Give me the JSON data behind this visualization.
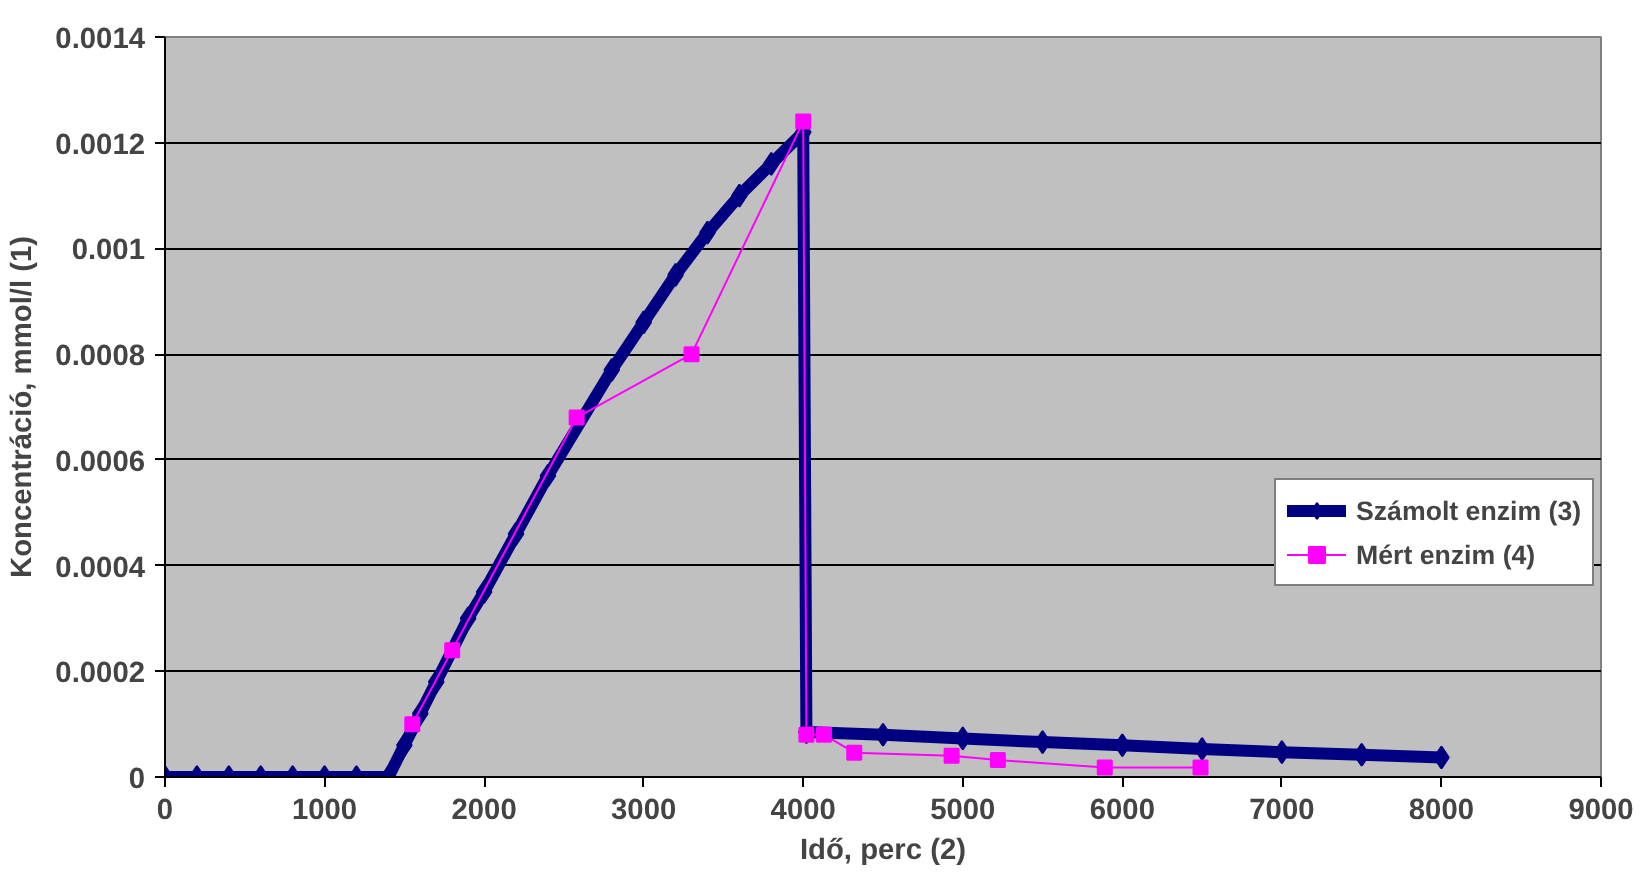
{
  "chart_data": {
    "type": "line",
    "xlabel": "Idő, perc (2)",
    "ylabel": "Koncentráció, mmol/l (1)",
    "xlim": [
      0,
      9000
    ],
    "xticks": [
      0,
      1000,
      2000,
      3000,
      4000,
      5000,
      6000,
      7000,
      8000,
      9000
    ],
    "ylim": [
      0,
      0.0014
    ],
    "yticks": [
      0,
      0.0002,
      0.0004,
      0.0006,
      0.0008,
      0.001,
      0.0012,
      0.0014
    ],
    "grid": "y",
    "legend": "right",
    "series": [
      {
        "name": "Számolt enzim (3)",
        "color": "#000080",
        "marker": "diamond",
        "x": [
          0,
          200,
          400,
          600,
          800,
          1000,
          1200,
          1400,
          1500,
          1600,
          1700,
          1900,
          2000,
          2200,
          2400,
          2800,
          3000,
          3200,
          3400,
          3600,
          3800,
          4000,
          4020,
          4500,
          5000,
          5500,
          6000,
          6500,
          7000,
          7500,
          8000
        ],
        "values": [
          0,
          0,
          0,
          0,
          0,
          0,
          0,
          0,
          6e-05,
          0.00012,
          0.00018,
          0.0003,
          0.00035,
          0.00046,
          0.00057,
          0.00077,
          0.00086,
          0.00095,
          0.00103,
          0.0011,
          0.00116,
          0.00122,
          8.5e-05,
          8e-05,
          7.3e-05,
          6.6e-05,
          6e-05,
          5.3e-05,
          4.7e-05,
          4.2e-05,
          3.7e-05
        ]
      },
      {
        "name": "Mért enzim (4)",
        "color": "#ff00ff",
        "marker": "square",
        "x": [
          1550,
          1800,
          2580,
          3300,
          4000,
          4020,
          4130,
          4320,
          4930,
          5220,
          5890,
          6490
        ],
        "values": [
          0.0001,
          0.00024,
          0.00068,
          0.0008,
          0.00124,
          8e-05,
          8e-05,
          4.6e-05,
          4e-05,
          3.2e-05,
          1.8e-05,
          1.8e-05
        ]
      }
    ]
  }
}
